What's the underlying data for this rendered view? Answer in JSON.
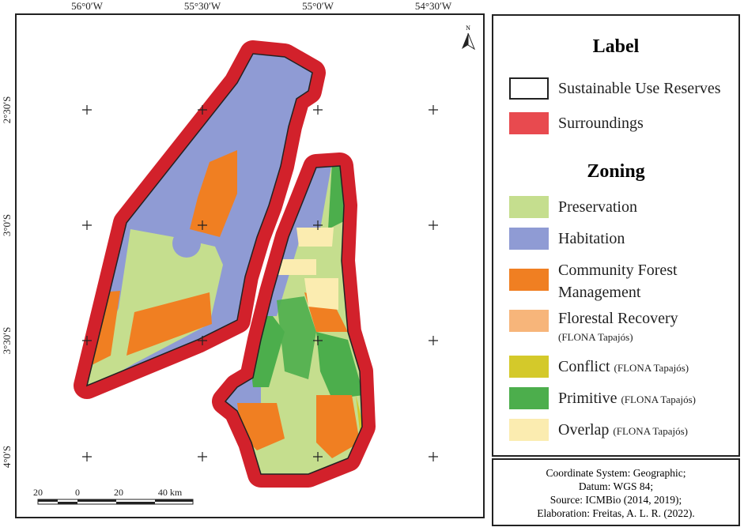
{
  "map": {
    "top_labels": [
      "56°0′W",
      "55°30′W",
      "55°0′W",
      "54°30′W"
    ],
    "left_labels": [
      "2°30′S",
      "3°0′S",
      "3°30′S",
      "4°0′S"
    ],
    "north": "N",
    "scale_labels": [
      "20",
      "0",
      "20",
      "40 km"
    ]
  },
  "legend": {
    "title": "Label",
    "items": [
      "Sustainable Use Reserves",
      "Surroundings"
    ],
    "zoning_title": "Zoning",
    "zoning": [
      {
        "label": "Preservation"
      },
      {
        "label": "Habitation"
      },
      {
        "label": "Community Forest Management"
      },
      {
        "label": "Florestal Recovery",
        "note": "(FLONA Tapajós)"
      },
      {
        "label": "Conflict",
        "note": "(FLONA Tapajós)"
      },
      {
        "label": "Primitive",
        "note": "(FLONA Tapajós)"
      },
      {
        "label": "Overlap",
        "note": "(FLONA Tapajós)"
      }
    ]
  },
  "info": [
    "Coordinate System: Geographic;",
    "Datum: WGS 84;",
    "Source: ICMBio (2014, 2019);",
    "Elaboration: Freitas, A. L. R. (2022)."
  ]
}
